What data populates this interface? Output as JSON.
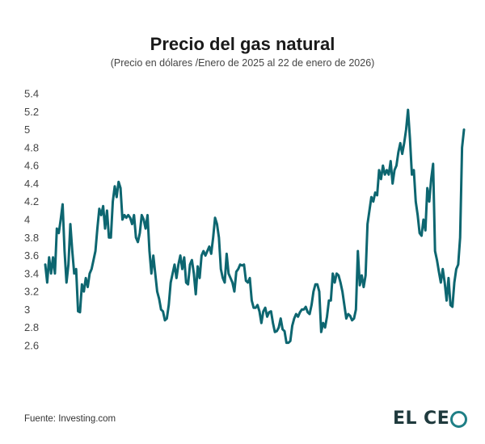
{
  "header": {
    "title": "Precio del gas natural",
    "subtitle": "(Precio en dólares /Enero de 2025 al 22 de enero de 2026)"
  },
  "footer": {
    "source": "Fuente: Investing.com",
    "logo_text_a": "EL",
    "logo_text_b": "CE",
    "logo_letter_o": "O"
  },
  "colors": {
    "line": "#0d6670",
    "logo_ring": "#1f7f86",
    "logo_text": "#1f3a3d"
  },
  "chart_data": {
    "type": "line",
    "title": "Precio del gas natural",
    "subtitle": "(Precio en dólares /Enero de 2025 al 22 de enero de 2026)",
    "xlabel": "",
    "ylabel": "",
    "ylim": [
      2.6,
      5.4
    ],
    "yticks": [
      "5.4",
      "5.2",
      "5",
      "4.8",
      "4.6",
      "4.4",
      "4.2",
      "4",
      "3.8",
      "3.6",
      "3.4",
      "3.2",
      "3",
      "2.8",
      "2.6"
    ],
    "ytick_values": [
      5.4,
      5.2,
      5.0,
      4.8,
      4.6,
      4.4,
      4.2,
      4.0,
      3.8,
      3.6,
      3.4,
      3.2,
      3.0,
      2.8,
      2.6
    ],
    "grid": false,
    "series": [
      {
        "name": "Precio del gas natural",
        "values": [
          3.5,
          3.3,
          3.58,
          3.4,
          3.58,
          3.4,
          3.9,
          3.85,
          4.0,
          4.17,
          3.65,
          3.3,
          3.5,
          3.95,
          3.65,
          3.4,
          3.45,
          2.98,
          2.97,
          3.28,
          3.2,
          3.35,
          3.25,
          3.4,
          3.45,
          3.55,
          3.65,
          3.9,
          4.12,
          4.05,
          4.15,
          3.9,
          4.1,
          3.8,
          3.8,
          4.2,
          4.37,
          4.25,
          4.42,
          4.35,
          4.0,
          4.05,
          4.02,
          4.05,
          4.02,
          3.95,
          4.05,
          3.8,
          3.75,
          3.85,
          4.05,
          4.0,
          3.9,
          4.05,
          3.65,
          3.4,
          3.6,
          3.4,
          3.2,
          3.12,
          3.0,
          2.98,
          2.88,
          2.9,
          3.05,
          3.3,
          3.4,
          3.5,
          3.35,
          3.5,
          3.6,
          3.45,
          3.58,
          3.3,
          3.28,
          3.5,
          3.55,
          3.4,
          3.17,
          3.48,
          3.35,
          3.6,
          3.65,
          3.6,
          3.65,
          3.7,
          3.62,
          3.8,
          4.02,
          3.95,
          3.8,
          3.45,
          3.35,
          3.3,
          3.62,
          3.4,
          3.35,
          3.3,
          3.2,
          3.42,
          3.45,
          3.5,
          3.49,
          3.5,
          3.32,
          3.3,
          3.35,
          3.1,
          3.02,
          3.02,
          3.05,
          2.98,
          2.85,
          2.98,
          3.02,
          2.92,
          2.97,
          2.98,
          2.85,
          2.75,
          2.76,
          2.8,
          2.9,
          2.78,
          2.76,
          2.63,
          2.63,
          2.65,
          2.82,
          2.9,
          2.95,
          2.92,
          2.97,
          3.0,
          3.0,
          3.03,
          2.97,
          2.95,
          3.05,
          3.2,
          3.28,
          3.28,
          3.2,
          2.75,
          2.85,
          2.8,
          2.92,
          3.1,
          3.1,
          3.4,
          3.3,
          3.4,
          3.38,
          3.3,
          3.2,
          3.05,
          2.9,
          2.95,
          2.93,
          2.88,
          2.9,
          3.0,
          3.65,
          3.27,
          3.38,
          3.25,
          3.38,
          3.95,
          4.1,
          4.25,
          4.2,
          4.3,
          4.27,
          4.55,
          4.45,
          4.6,
          4.5,
          4.55,
          4.5,
          4.65,
          4.4,
          4.55,
          4.6,
          4.75,
          4.85,
          4.73,
          4.85,
          5.0,
          5.22,
          4.9,
          4.5,
          4.55,
          4.2,
          4.05,
          3.85,
          3.82,
          4.0,
          3.88,
          4.35,
          4.2,
          4.45,
          4.62,
          3.65,
          3.55,
          3.42,
          3.3,
          3.45,
          3.3,
          3.1,
          3.35,
          3.05,
          3.03,
          3.3,
          3.45,
          3.5,
          3.8,
          4.8,
          5.0
        ]
      }
    ]
  }
}
